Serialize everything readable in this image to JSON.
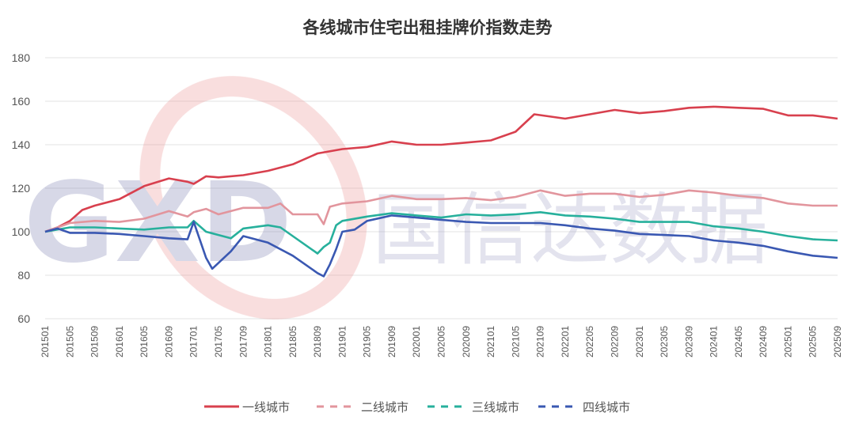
{
  "chart_data": {
    "type": "line",
    "title": "各线城市住宅出租挂牌价指数走势",
    "xlabel": "",
    "ylabel": "",
    "ylim": [
      60,
      180
    ],
    "yticks": [
      60,
      80,
      100,
      120,
      140,
      160,
      180
    ],
    "xticks": [
      "201501",
      "201505",
      "201509",
      "201601",
      "201605",
      "201609",
      "201701",
      "201705",
      "201709",
      "201801",
      "201805",
      "201809",
      "201901",
      "201905",
      "201909",
      "202001",
      "202005",
      "202009",
      "202101",
      "202105",
      "202109",
      "202201",
      "202205",
      "202209",
      "202301",
      "202305",
      "202309",
      "202401",
      "202405",
      "202409",
      "202501",
      "202505",
      "202509"
    ],
    "grid": "horizontal",
    "legend_position": "bottom",
    "series": [
      {
        "name": "一线城市",
        "color": "#d8404e",
        "style": "solid",
        "points": [
          [
            "201501",
            100
          ],
          [
            "201503",
            102
          ],
          [
            "201505",
            105
          ],
          [
            "201507",
            110
          ],
          [
            "201509",
            112
          ],
          [
            "201601",
            115
          ],
          [
            "201605",
            121
          ],
          [
            "201609",
            124.5
          ],
          [
            "201612",
            123
          ],
          [
            "201701",
            122
          ],
          [
            "201703",
            125.5
          ],
          [
            "201705",
            125
          ],
          [
            "201709",
            126
          ],
          [
            "201801",
            128
          ],
          [
            "201805",
            131
          ],
          [
            "201809",
            136
          ],
          [
            "201901",
            138
          ],
          [
            "201905",
            139
          ],
          [
            "201909",
            141.5
          ],
          [
            "202001",
            140
          ],
          [
            "202005",
            140
          ],
          [
            "202009",
            141
          ],
          [
            "202101",
            142
          ],
          [
            "202105",
            146
          ],
          [
            "202108",
            154
          ],
          [
            "202201",
            152
          ],
          [
            "202205",
            154
          ],
          [
            "202209",
            156
          ],
          [
            "202301",
            154.5
          ],
          [
            "202305",
            155.5
          ],
          [
            "202309",
            157
          ],
          [
            "202401",
            157.5
          ],
          [
            "202405",
            157
          ],
          [
            "202409",
            156.5
          ],
          [
            "202501",
            153.5
          ],
          [
            "202505",
            153.5
          ],
          [
            "202509",
            152
          ]
        ]
      },
      {
        "name": "二线城市",
        "color": "#e2959d",
        "style": "dashed",
        "points": [
          [
            "201501",
            100
          ],
          [
            "201505",
            104
          ],
          [
            "201509",
            105
          ],
          [
            "201601",
            104.5
          ],
          [
            "201605",
            106
          ],
          [
            "201609",
            109.5
          ],
          [
            "201612",
            107
          ],
          [
            "201701",
            109
          ],
          [
            "201703",
            110.5
          ],
          [
            "201705",
            108
          ],
          [
            "201709",
            111
          ],
          [
            "201801",
            111
          ],
          [
            "201803",
            113
          ],
          [
            "201805",
            108
          ],
          [
            "201809",
            108
          ],
          [
            "201810",
            103.5
          ],
          [
            "201811",
            111.5
          ],
          [
            "201901",
            113
          ],
          [
            "201905",
            114
          ],
          [
            "201909",
            116.5
          ],
          [
            "202001",
            115
          ],
          [
            "202005",
            115
          ],
          [
            "202009",
            115.5
          ],
          [
            "202101",
            114.5
          ],
          [
            "202105",
            116
          ],
          [
            "202109",
            119
          ],
          [
            "202201",
            116.5
          ],
          [
            "202205",
            117.5
          ],
          [
            "202209",
            117.5
          ],
          [
            "202301",
            116
          ],
          [
            "202305",
            117
          ],
          [
            "202309",
            119
          ],
          [
            "202401",
            118
          ],
          [
            "202405",
            116.5
          ],
          [
            "202409",
            115.5
          ],
          [
            "202501",
            113
          ],
          [
            "202505",
            112
          ],
          [
            "202509",
            112
          ]
        ]
      },
      {
        "name": "三线城市",
        "color": "#27b09c",
        "style": "dashed",
        "points": [
          [
            "201501",
            100
          ],
          [
            "201505",
            102
          ],
          [
            "201509",
            102
          ],
          [
            "201601",
            101.5
          ],
          [
            "201605",
            101
          ],
          [
            "201609",
            102
          ],
          [
            "201612",
            102
          ],
          [
            "201701",
            105
          ],
          [
            "201703",
            100
          ],
          [
            "201705",
            98.5
          ],
          [
            "201707",
            97
          ],
          [
            "201709",
            101.5
          ],
          [
            "201801",
            103
          ],
          [
            "201803",
            102
          ],
          [
            "201805",
            98
          ],
          [
            "201809",
            90
          ],
          [
            "201810",
            93
          ],
          [
            "201811",
            95
          ],
          [
            "201812",
            103
          ],
          [
            "201901",
            105
          ],
          [
            "201905",
            107
          ],
          [
            "201909",
            108.5
          ],
          [
            "202001",
            107.5
          ],
          [
            "202005",
            106.5
          ],
          [
            "202009",
            108
          ],
          [
            "202101",
            107.5
          ],
          [
            "202105",
            108
          ],
          [
            "202109",
            109
          ],
          [
            "202201",
            107.5
          ],
          [
            "202205",
            107
          ],
          [
            "202209",
            106
          ],
          [
            "202301",
            104.5
          ],
          [
            "202305",
            104.5
          ],
          [
            "202309",
            104.5
          ],
          [
            "202401",
            102.5
          ],
          [
            "202405",
            101.5
          ],
          [
            "202409",
            100
          ],
          [
            "202501",
            98
          ],
          [
            "202505",
            96.5
          ],
          [
            "202509",
            96
          ]
        ]
      },
      {
        "name": "四线城市",
        "color": "#3a58b2",
        "style": "dashed",
        "points": [
          [
            "201501",
            100
          ],
          [
            "201503",
            101.5
          ],
          [
            "201505",
            99.5
          ],
          [
            "201509",
            99.5
          ],
          [
            "201601",
            99
          ],
          [
            "201605",
            98
          ],
          [
            "201609",
            97
          ],
          [
            "201612",
            96.5
          ],
          [
            "201701",
            104.5
          ],
          [
            "201703",
            88
          ],
          [
            "201704",
            83
          ],
          [
            "201707",
            91
          ],
          [
            "201709",
            98
          ],
          [
            "201801",
            95
          ],
          [
            "201805",
            89
          ],
          [
            "201809",
            81
          ],
          [
            "201810",
            79.5
          ],
          [
            "201811",
            85
          ],
          [
            "201812",
            92
          ],
          [
            "201901",
            100
          ],
          [
            "201903",
            101
          ],
          [
            "201905",
            105
          ],
          [
            "201909",
            107.5
          ],
          [
            "202001",
            106.5
          ],
          [
            "202005",
            105.5
          ],
          [
            "202009",
            104.5
          ],
          [
            "202101",
            104
          ],
          [
            "202105",
            104
          ],
          [
            "202109",
            104
          ],
          [
            "202201",
            103
          ],
          [
            "202205",
            101.5
          ],
          [
            "202209",
            100.5
          ],
          [
            "202301",
            99
          ],
          [
            "202305",
            98.5
          ],
          [
            "202309",
            98
          ],
          [
            "202401",
            96
          ],
          [
            "202405",
            95
          ],
          [
            "202409",
            93.5
          ],
          [
            "202501",
            91
          ],
          [
            "202505",
            89
          ],
          [
            "202509",
            88
          ]
        ]
      }
    ]
  },
  "watermark": {
    "logo_text": "GXD",
    "brand_text": "国信达数据"
  }
}
